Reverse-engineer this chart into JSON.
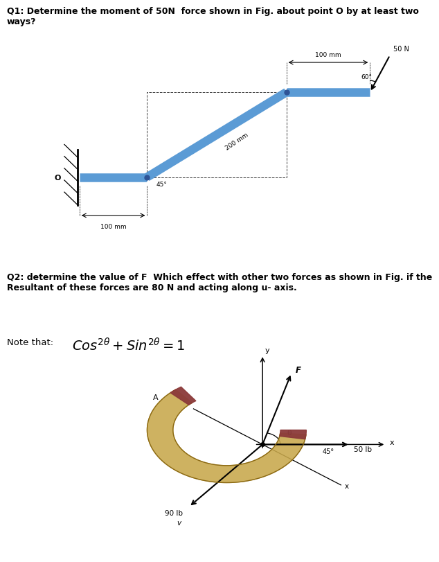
{
  "bg_color": "#ffffff",
  "q1_title": "Q1: Determine the moment of 50N  force shown in Fig. about point O by at least two\nways?",
  "q2_title": "Q2: determine the value of F  Which effect with other two forces as shown in Fig. if the\nResultant of these forces are 80 N and acting along u- axis.",
  "note_prefix": "Note that: ",
  "bar_color": "#5b9bd5",
  "bar_color2": "#2f5496",
  "text_color": "#000000",
  "title_fontsize": 9,
  "label_fontsize": 7.5,
  "fig_width": 6.18,
  "fig_height": 8.0,
  "fig_dpi": 100,
  "arc_gold": "#c8a84b",
  "arc_gold_edge": "#8B6914",
  "arc_red": "#8B3A3A",
  "arc_brown": "#7B4B2A"
}
